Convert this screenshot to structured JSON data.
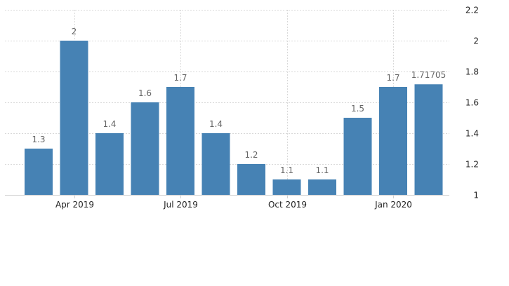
{
  "chart_data": {
    "type": "bar",
    "categories": [
      "2019-03",
      "2019-04",
      "2019-05",
      "2019-06",
      "2019-07",
      "2019-08",
      "2019-09",
      "2019-10",
      "2019-11",
      "2019-12",
      "2020-01",
      "2020-02"
    ],
    "values": [
      1.3,
      2,
      1.4,
      1.6,
      1.7,
      1.4,
      1.2,
      1.1,
      1.1,
      1.5,
      1.7,
      1.71705
    ],
    "data_labels": [
      "1.3",
      "2",
      "1.4",
      "1.6",
      "1.7",
      "1.4",
      "1.2",
      "1.1",
      "1.1",
      "1.5",
      "1.7",
      "1.71705"
    ],
    "title": "",
    "xlabel": "",
    "ylabel": "",
    "ylim": [
      1,
      2.2
    ],
    "y_ticks": [
      1,
      1.2,
      1.4,
      1.6,
      1.8,
      2,
      2.2
    ],
    "y_tick_labels": [
      "1",
      "1.2",
      "1.4",
      "1.6",
      "1.8",
      "2",
      "2.2"
    ],
    "x_ticks": [
      {
        "label": "Apr 2019",
        "category": "2019-04"
      },
      {
        "label": "Jul 2019",
        "category": "2019-07"
      },
      {
        "label": "Oct 2019",
        "category": "2019-10"
      },
      {
        "label": "Jan 2020",
        "category": "2020-01"
      }
    ],
    "y_axis_position": "right",
    "grid": true,
    "colors": {
      "bar": "#4682b4",
      "grid": "#d9d9d9",
      "label": "#666666",
      "tick": "#222222"
    }
  }
}
